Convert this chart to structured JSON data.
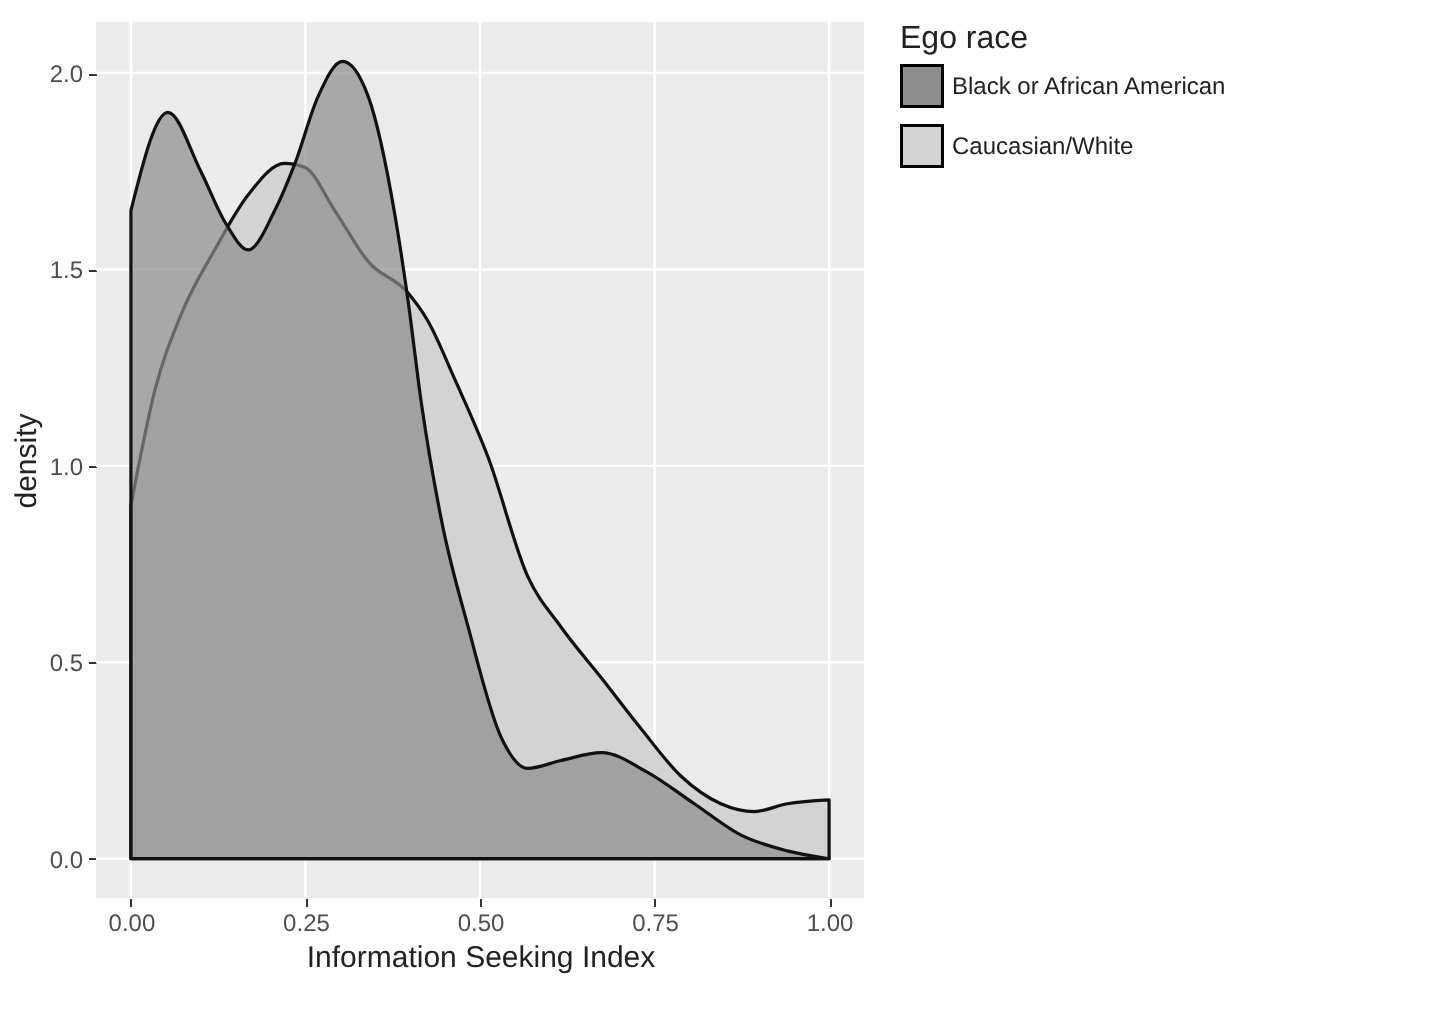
{
  "chart_data": {
    "type": "area",
    "xlabel": "Information Seeking Index",
    "ylabel": "density",
    "legend_title": "Ego race",
    "legend": "right",
    "grid": true,
    "xlim": [
      -0.05,
      1.05
    ],
    "xticks": [
      {
        "value": 0,
        "label": "0.00"
      },
      {
        "value": 0.25,
        "label": "0.25"
      },
      {
        "value": 0.5,
        "label": "0.50"
      },
      {
        "value": 0.75,
        "label": "0.75"
      },
      {
        "value": 1,
        "label": "1.00"
      }
    ],
    "ylim": [
      -0.1,
      2.13
    ],
    "yticks": [
      {
        "value": 0,
        "label": "0.0"
      },
      {
        "value": 0.5,
        "label": "0.5"
      },
      {
        "value": 1,
        "label": "1.0"
      },
      {
        "value": 1.5,
        "label": "1.5"
      },
      {
        "value": 2,
        "label": "2.0"
      }
    ],
    "series": [
      {
        "name": "Black or African American",
        "color": "#8c8c8c",
        "x": [
          0,
          0.053,
          0.1,
          0.135,
          0.168,
          0.206,
          0.235,
          0.268,
          0.303,
          0.34,
          0.378,
          0.397,
          0.416,
          0.445,
          0.483,
          0.53,
          0.568,
          0.616,
          0.674,
          0.74,
          0.807,
          0.874,
          0.94,
          1.0
        ],
        "values": [
          1.65,
          1.9,
          1.75,
          1.62,
          1.55,
          1.65,
          1.77,
          1.94,
          2.03,
          1.94,
          1.64,
          1.42,
          1.16,
          0.86,
          0.59,
          0.31,
          0.23,
          0.25,
          0.27,
          0.22,
          0.14,
          0.06,
          0.02,
          0.0
        ]
      },
      {
        "name": "Caucasian/White",
        "color": "#d3d3d3",
        "x": [
          0,
          0.034,
          0.073,
          0.12,
          0.168,
          0.22,
          0.249,
          0.292,
          0.34,
          0.397,
          0.425,
          0.464,
          0.512,
          0.568,
          0.616,
          0.674,
          0.731,
          0.788,
          0.845,
          0.893,
          0.94,
          1.0
        ],
        "values": [
          0.9,
          1.19,
          1.39,
          1.55,
          1.69,
          1.77,
          1.76,
          1.65,
          1.52,
          1.44,
          1.37,
          1.22,
          1.02,
          0.72,
          0.59,
          0.46,
          0.33,
          0.21,
          0.14,
          0.12,
          0.14,
          0.15
        ]
      }
    ]
  }
}
